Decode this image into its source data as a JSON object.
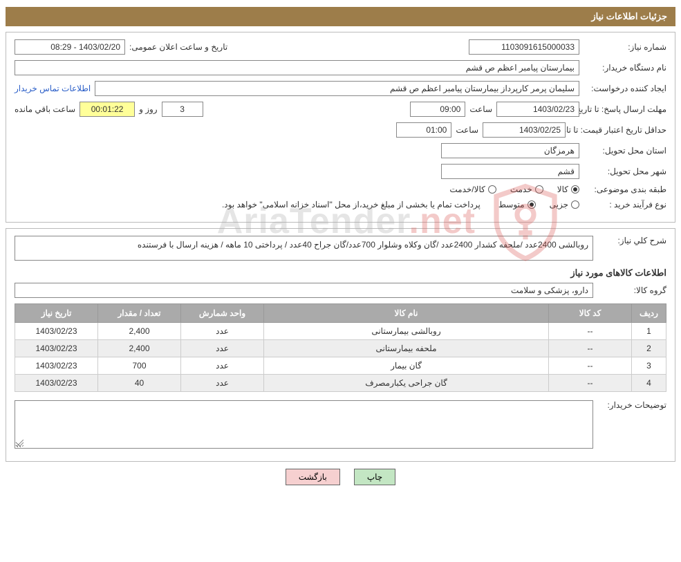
{
  "header": {
    "title": "جزئیات اطلاعات نیاز"
  },
  "info": {
    "need_number_label": "شماره نیاز:",
    "need_number": "1103091615000033",
    "announce_label": "تاریخ و ساعت اعلان عمومی:",
    "announce_value": "1403/02/20 - 08:29",
    "buyer_org_label": "نام دستگاه خریدار:",
    "buyer_org": "بیمارستان پیامبر اعظم  ص  قشم",
    "requester_label": "ایجاد کننده درخواست:",
    "requester": "سلیمان پرمر کارپرداز بیمارستان پیامبر اعظم  ص  قشم",
    "contact_link": "اطلاعات تماس خریدار",
    "deadline_label": "مهلت ارسال پاسخ: تا تاریخ:",
    "deadline_date": "1403/02/23",
    "time_label": "ساعت",
    "deadline_time": "09:00",
    "days_value": "3",
    "days_and_label": "روز و",
    "remaining_time": "00:01:22",
    "remaining_label": "ساعت باقي مانده",
    "validity_label": "حداقل تاریخ اعتبار قیمت: تا تاریخ:",
    "validity_date": "1403/02/25",
    "validity_time": "01:00",
    "province_label": "استان محل تحویل:",
    "province": "هرمزگان",
    "city_label": "شهر محل تحویل:",
    "city": "قشم",
    "category_label": "طبقه بندی موضوعی:",
    "cat_goods": "کالا",
    "cat_service": "خدمت",
    "cat_goods_service": "کالا/خدمت",
    "purchase_type_label": "نوع فرآیند خرید :",
    "pt_partial": "جزیی",
    "pt_medium": "متوسط",
    "purchase_note": "پرداخت تمام یا بخشی از مبلغ خرید،از محل \"اسناد خزانه اسلامی\" خواهد بود."
  },
  "desc": {
    "overall_label": "شرح کلي نياز:",
    "overall_text": "روبالشی 2400عدد /ملحفه کشدار 2400عدد /گان وکلاه وشلوار 700عدد/گان جراح 40عدد / پرداختی 10 ماهه / هزینه ارسال با فرستنده",
    "items_title": "اطلاعات کالاهای مورد نیاز",
    "group_label": "گروه کالا:",
    "group_value": "دارو، پزشکی و سلامت"
  },
  "table": {
    "headers": {
      "row": "ردیف",
      "code": "کد کالا",
      "name": "نام کالا",
      "unit": "واحد شمارش",
      "qty": "تعداد / مقدار",
      "date": "تاریخ نیاز"
    },
    "col_widths": {
      "row": "50px",
      "code": "120px",
      "name": "auto",
      "unit": "120px",
      "qty": "120px",
      "date": "120px"
    },
    "rows": [
      {
        "n": "1",
        "code": "--",
        "name": "روبالشی بیمارستانی",
        "unit": "عدد",
        "qty": "2,400",
        "date": "1403/02/23"
      },
      {
        "n": "2",
        "code": "--",
        "name": "ملحفه بیمارستانی",
        "unit": "عدد",
        "qty": "2,400",
        "date": "1403/02/23"
      },
      {
        "n": "3",
        "code": "--",
        "name": "گان بیمار",
        "unit": "عدد",
        "qty": "700",
        "date": "1403/02/23"
      },
      {
        "n": "4",
        "code": "--",
        "name": "گان جراحی یکبارمصرف",
        "unit": "عدد",
        "qty": "40",
        "date": "1403/02/23"
      }
    ]
  },
  "footer": {
    "buyer_notes_label": "توضیحات خریدار:",
    "print_btn": "چاپ",
    "back_btn": "بازگشت"
  },
  "watermark": {
    "text1": "AriaTender",
    "text2": ".net",
    "shield_color": "#d9534f"
  },
  "colors": {
    "header_bg": "#9d7d4a",
    "header_text": "#ffffff",
    "border": "#bbbbbb",
    "th_bg": "#aaaaaa",
    "link": "#2a5ec8",
    "highlight_bg": "#ffff99",
    "btn_green": "#c3e6c3",
    "btn_pink": "#f6d0d0"
  }
}
